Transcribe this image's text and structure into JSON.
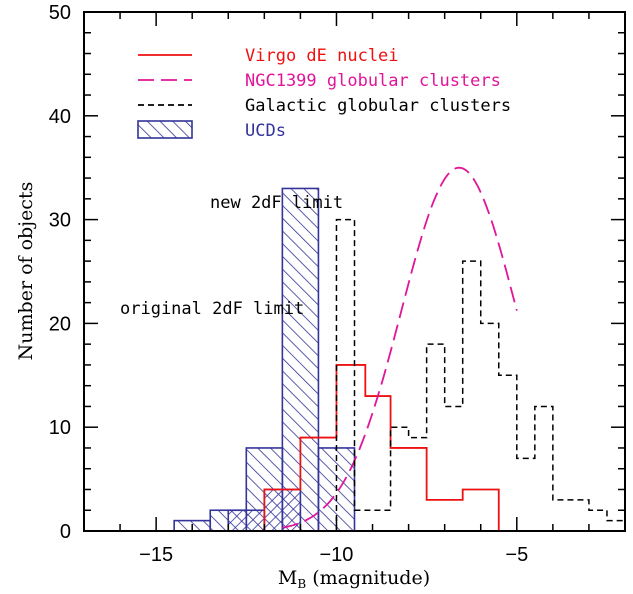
{
  "chart_data": {
    "type": "histogram",
    "xlabel": "M",
    "xlabel_sub": "B",
    "xlabel_rest": " (magnitude)",
    "ylabel": "Number of objects",
    "xlim": [
      -17.0,
      -2.0
    ],
    "ylim": [
      0,
      50
    ],
    "x_reversed": false,
    "xticks": [
      -15,
      -10,
      -5
    ],
    "xtick_labels": [
      "−15",
      "−10",
      "−5"
    ],
    "yticks": [
      0,
      10,
      20,
      30,
      40,
      50
    ],
    "ytick_labels": [
      "0",
      "10",
      "20",
      "30",
      "40",
      "50"
    ],
    "grid": false,
    "legend_position": "top-left",
    "series": [
      {
        "name": "Virgo dE nuclei",
        "style": "solid-step",
        "color": "#ee1111",
        "bins": [
          {
            "x0": -12.0,
            "x1": -11.0,
            "y": 4
          },
          {
            "x0": -11.0,
            "x1": -10.0,
            "y": 9
          },
          {
            "x0": -10.0,
            "x1": -9.2,
            "y": 16
          },
          {
            "x0": -9.2,
            "x1": -8.5,
            "y": 13
          },
          {
            "x0": -8.5,
            "x1": -7.5,
            "y": 8
          },
          {
            "x0": -7.5,
            "x1": -6.5,
            "y": 3
          },
          {
            "x0": -6.5,
            "x1": -5.5,
            "y": 4
          },
          {
            "x0": -5.5,
            "x1": -5.0,
            "y": 0
          }
        ]
      },
      {
        "name": "NGC1399 globular clusters",
        "style": "long-dash-curve",
        "color": "#e0159a",
        "curve": {
          "peak_x": -6.6,
          "peak_y": 35,
          "sigma": 1.6,
          "x_start": -11.5,
          "x_end": -5.0
        }
      },
      {
        "name": "Galactic globular clusters",
        "style": "dashed-step",
        "color": "#000000",
        "bins": [
          {
            "x0": -10.0,
            "x1": -9.5,
            "y": 30
          },
          {
            "x0": -9.5,
            "x1": -8.5,
            "y": 2
          },
          {
            "x0": -8.5,
            "x1": -8.0,
            "y": 10
          },
          {
            "x0": -8.0,
            "x1": -7.5,
            "y": 9
          },
          {
            "x0": -7.5,
            "x1": -7.0,
            "y": 18
          },
          {
            "x0": -7.0,
            "x1": -6.5,
            "y": 12
          },
          {
            "x0": -6.5,
            "x1": -6.0,
            "y": 26
          },
          {
            "x0": -6.0,
            "x1": -5.5,
            "y": 20
          },
          {
            "x0": -5.5,
            "x1": -5.0,
            "y": 15
          },
          {
            "x0": -5.0,
            "x1": -4.5,
            "y": 7
          },
          {
            "x0": -4.5,
            "x1": -4.0,
            "y": 12
          },
          {
            "x0": -4.0,
            "x1": -3.0,
            "y": 3
          },
          {
            "x0": -3.0,
            "x1": -2.5,
            "y": 2
          },
          {
            "x0": -2.5,
            "x1": -2.0,
            "y": 1
          }
        ]
      },
      {
        "name": "UCDs",
        "style": "hatched-bars",
        "color": "#333399",
        "bins": [
          {
            "x0": -14.5,
            "x1": -13.5,
            "y": 1
          },
          {
            "x0": -13.5,
            "x1": -12.5,
            "y": 2
          },
          {
            "x0": -12.5,
            "x1": -11.5,
            "y": 8
          },
          {
            "x0": -11.5,
            "x1": -10.5,
            "y": 33
          },
          {
            "x0": -10.5,
            "x1": -9.5,
            "y": 8
          }
        ],
        "secondary_bins": [
          {
            "x0": -13.0,
            "x1": -12.0,
            "y": 2
          },
          {
            "x0": -12.0,
            "x1": -11.0,
            "y": 4
          }
        ]
      }
    ],
    "annotations": [
      {
        "text": "new 2dF limit",
        "x": -10.2,
        "y": 30
      },
      {
        "text": "original 2dF limit",
        "x": -11.0,
        "y": 20
      }
    ]
  }
}
